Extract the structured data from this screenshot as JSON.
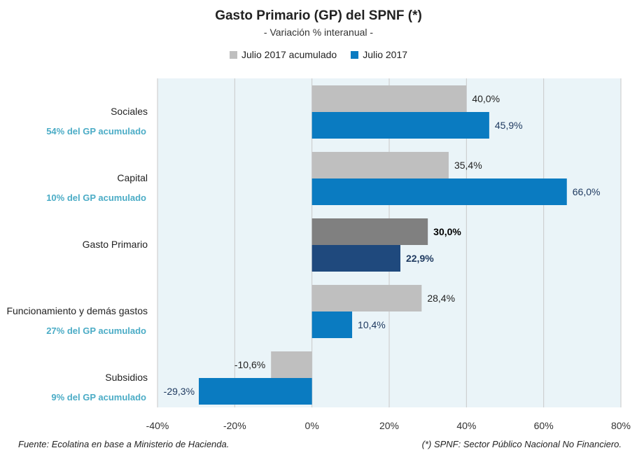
{
  "chart_data": {
    "type": "bar",
    "orientation": "horizontal",
    "title": "Gasto Primario (GP) del SPNF (*)",
    "subtitle": "- Variación % interanual -",
    "xlim": [
      -40,
      80
    ],
    "x_ticks": [
      "-40%",
      "-20%",
      "0%",
      "20%",
      "40%",
      "60%",
      "80%"
    ],
    "grid": true,
    "legend_position": "top",
    "series": [
      {
        "name": "Julio 2017 acumulado",
        "color": "#bfbfbf"
      },
      {
        "name": "Julio 2017",
        "color": "#0a7bc1"
      }
    ],
    "categories": [
      {
        "label": "Sociales",
        "sublabel": "54% del GP acumulado",
        "values": [
          40.0,
          45.9
        ],
        "value_labels": [
          "40,0%",
          "45,9%"
        ],
        "colors": [
          "#bfbfbf",
          "#0a7bc1"
        ],
        "label_colors": [
          "#222222",
          "#1f3a60"
        ],
        "bold": false
      },
      {
        "label": "Capital",
        "sublabel": "10% del GP acumulado",
        "values": [
          35.4,
          66.0
        ],
        "value_labels": [
          "35,4%",
          "66,0%"
        ],
        "colors": [
          "#bfbfbf",
          "#0a7bc1"
        ],
        "label_colors": [
          "#222222",
          "#1f3a60"
        ],
        "bold": false
      },
      {
        "label": "Gasto Primario",
        "sublabel": "",
        "values": [
          30.0,
          22.9
        ],
        "value_labels": [
          "30,0%",
          "22,9%"
        ],
        "colors": [
          "#808080",
          "#1f497d"
        ],
        "label_colors": [
          "#000000",
          "#1f3a60"
        ],
        "bold": true
      },
      {
        "label": "Funcionamiento y demás gastos",
        "sublabel": "27% del GP acumulado",
        "values": [
          28.4,
          10.4
        ],
        "value_labels": [
          "28,4%",
          "10,4%"
        ],
        "colors": [
          "#bfbfbf",
          "#0a7bc1"
        ],
        "label_colors": [
          "#222222",
          "#1f3a60"
        ],
        "bold": false
      },
      {
        "label": "Subsidios",
        "sublabel": "9% del GP acumulado",
        "values": [
          -10.6,
          -29.3
        ],
        "value_labels": [
          "-10,6%",
          "-29,3%"
        ],
        "colors": [
          "#bfbfbf",
          "#0a7bc1"
        ],
        "label_colors": [
          "#222222",
          "#1f3a60"
        ],
        "bold": false
      }
    ],
    "plot_background": "#eaf4f8"
  },
  "footer": {
    "source": "Fuente: Ecolatina en base a Ministerio de Hacienda.",
    "note": "(*) SPNF: Sector Público Nacional No Financiero."
  }
}
